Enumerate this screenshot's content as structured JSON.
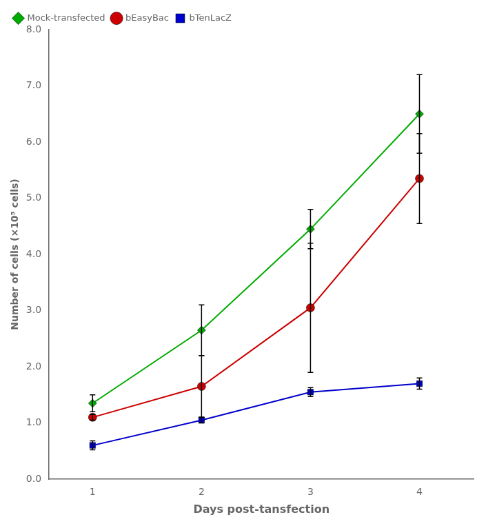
{
  "chart_data": {
    "type": "line",
    "xlabel": "Days post-tansfection",
    "ylabel": "Number of cells (×10⁵ cells)",
    "x": [
      1,
      2,
      3,
      4
    ],
    "series": [
      {
        "name": "Mock-transfected",
        "color": "#00aa00",
        "marker": "diamond",
        "values": [
          1.35,
          2.65,
          4.45,
          6.5
        ],
        "errors": [
          0.15,
          0.45,
          0.35,
          0.7
        ]
      },
      {
        "name": "bEasyBac",
        "color": "#cc0000",
        "marker": "circle",
        "values": [
          1.1,
          1.65,
          3.05,
          5.35
        ],
        "errors": [
          0.05,
          0.55,
          1.15,
          0.8
        ]
      },
      {
        "name": "bTenLacZ",
        "color": "#0000cc",
        "marker": "square",
        "values": [
          0.6,
          1.05,
          1.55,
          1.7
        ],
        "errors": [
          0.08,
          0.05,
          0.08,
          0.1
        ]
      }
    ],
    "xlim": [
      0.6,
      4.5
    ],
    "xticks": [
      1,
      2,
      3,
      4
    ],
    "ylim": [
      0.0,
      8.0
    ],
    "yticks": [
      {
        "value": 0,
        "label": "0.0"
      },
      {
        "value": 1,
        "label": "1.0"
      },
      {
        "value": 2,
        "label": "2.0"
      },
      {
        "value": 3,
        "label": "3.0"
      },
      {
        "value": 4,
        "label": "4.0"
      },
      {
        "value": 5,
        "label": "5.0"
      },
      {
        "value": 6,
        "label": "6.0"
      },
      {
        "value": 7,
        "label": "7.0"
      },
      {
        "value": 8,
        "label": "8.0"
      }
    ],
    "grid": false,
    "legend": "upper left"
  }
}
